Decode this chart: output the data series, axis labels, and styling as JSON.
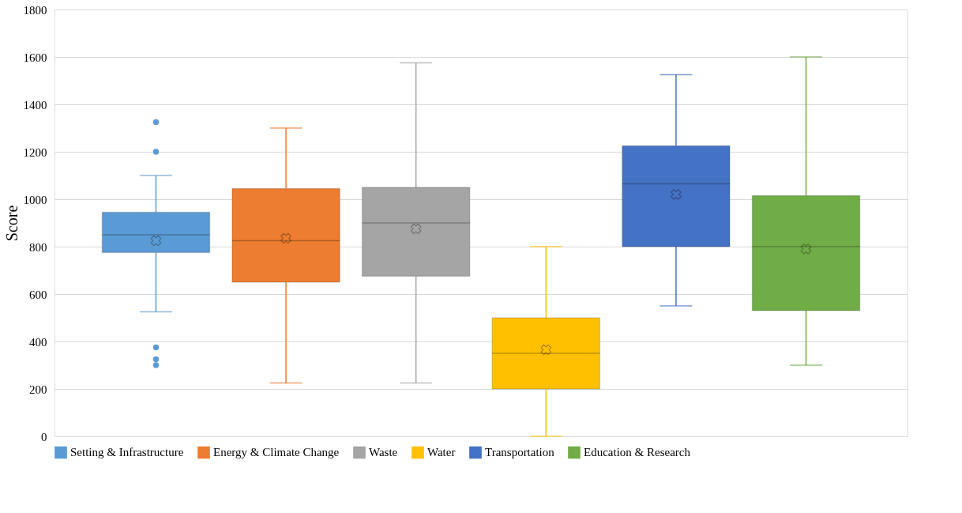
{
  "chart_data": {
    "type": "box",
    "ylabel": "Score",
    "categories": [
      null
    ],
    "ylim": [
      0,
      1800
    ],
    "yticks": [
      0,
      200,
      400,
      600,
      800,
      1000,
      1200,
      1400,
      1600,
      1800
    ],
    "grid": "y",
    "legend": "bottom",
    "series": [
      {
        "name": "Setting & Infrastructure",
        "color": "#5b9bd5",
        "boxes": [
          {
            "low": 525,
            "q1": 775,
            "median": 850,
            "q3": 945,
            "high": 1100,
            "mean": 825,
            "outliers": [
              1325,
              1200,
              375,
              325,
              300
            ]
          }
        ]
      },
      {
        "name": "Energy & Climate Change",
        "color": "#ed7d31",
        "boxes": [
          {
            "low": 225,
            "q1": 650,
            "median": 825,
            "q3": 1045,
            "high": 1300,
            "mean": 835
          }
        ]
      },
      {
        "name": "Waste",
        "color": "#a5a5a5",
        "boxes": [
          {
            "low": 225,
            "q1": 675,
            "median": 900,
            "q3": 1050,
            "high": 1575,
            "mean": 875
          }
        ]
      },
      {
        "name": "Water",
        "color": "#ffc000",
        "boxes": [
          {
            "low": 0,
            "q1": 200,
            "median": 350,
            "q3": 500,
            "high": 800,
            "mean": 365
          }
        ]
      },
      {
        "name": "Transportation",
        "color": "#4472c4",
        "boxes": [
          {
            "low": 550,
            "q1": 800,
            "median": 1065,
            "q3": 1225,
            "high": 1525,
            "mean": 1020
          }
        ]
      },
      {
        "name": "Education & Research",
        "color": "#70ad47",
        "boxes": [
          {
            "low": 300,
            "q1": 530,
            "median": 800,
            "q3": 1015,
            "high": 1600,
            "mean": 790
          }
        ]
      }
    ]
  }
}
